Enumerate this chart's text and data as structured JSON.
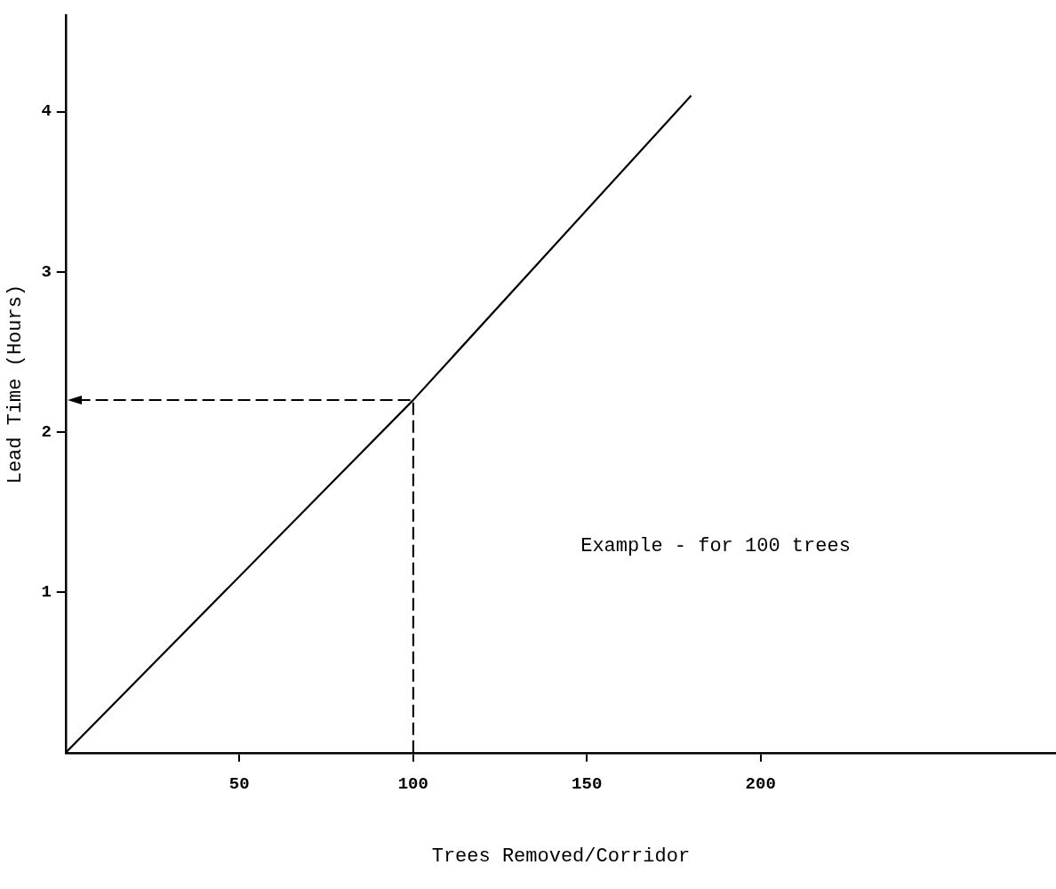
{
  "chart_data": {
    "type": "line",
    "xlabel": "Trees Removed/Corridor",
    "ylabel": "Lead Time (Hours)",
    "xlim": [
      0,
      285
    ],
    "xticks": [
      50,
      100,
      150,
      200
    ],
    "ylim": [
      0,
      4.6
    ],
    "yticks": [
      1,
      2,
      3,
      4
    ],
    "grid": false,
    "legend": false,
    "marker": "none",
    "line_style": "solid",
    "series": [
      {
        "color": "#000000",
        "x": [
          0,
          100,
          180
        ],
        "values": [
          0,
          2.2,
          4.1
        ]
      }
    ],
    "annotations": [
      "Example - for 100 trees"
    ]
  }
}
